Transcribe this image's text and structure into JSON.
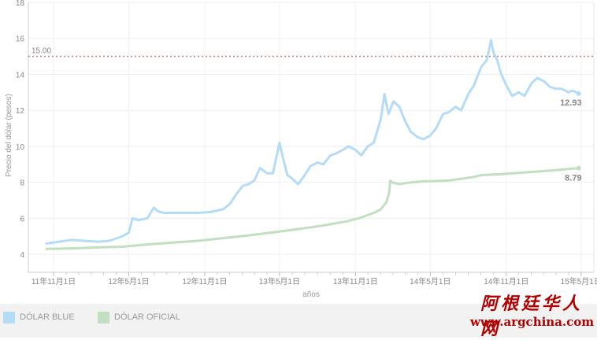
{
  "chart_data": {
    "type": "line",
    "ylabel": "Precio del dólar (pesos)",
    "xlabel": "años",
    "ylim": [
      3,
      18
    ],
    "yticks": [
      4,
      6,
      8,
      10,
      12,
      14,
      16,
      18
    ],
    "xlim": [
      "2011-09-01",
      "2015-06-01"
    ],
    "xticks": [
      {
        "date": "2011-11-01",
        "label": "11年11月1日"
      },
      {
        "date": "2012-05-01",
        "label": "12年5月1日"
      },
      {
        "date": "2012-11-01",
        "label": "12年11月1日"
      },
      {
        "date": "2013-05-01",
        "label": "13年5月1日"
      },
      {
        "date": "2013-11-01",
        "label": "13年11月1日"
      },
      {
        "date": "2014-05-01",
        "label": "14年5月1日"
      },
      {
        "date": "2014-11-01",
        "label": "14年11月1日"
      },
      {
        "date": "2015-05-01",
        "label": "15年5月1日"
      }
    ],
    "reference_line": {
      "value": 15.0,
      "label": "15.00",
      "color": "#cc7777"
    },
    "grid": true,
    "series": [
      {
        "name": "DÓLAR BLUE",
        "color": "#b5dcf7",
        "end_label": "12.93",
        "x": [
          "2011-10-15",
          "2011-11-15",
          "2011-12-15",
          "2012-01-15",
          "2012-02-15",
          "2012-03-15",
          "2012-04-15",
          "2012-05-01",
          "2012-05-10",
          "2012-05-25",
          "2012-06-15",
          "2012-07-01",
          "2012-07-10",
          "2012-07-25",
          "2012-08-15",
          "2012-09-15",
          "2012-10-15",
          "2012-11-15",
          "2012-12-15",
          "2013-01-01",
          "2013-01-15",
          "2013-02-01",
          "2013-02-15",
          "2013-03-01",
          "2013-03-15",
          "2013-04-01",
          "2013-04-15",
          "2013-05-01",
          "2013-05-10",
          "2013-05-20",
          "2013-06-01",
          "2013-06-15",
          "2013-07-01",
          "2013-07-15",
          "2013-08-01",
          "2013-08-15",
          "2013-09-01",
          "2013-09-15",
          "2013-10-01",
          "2013-10-15",
          "2013-11-01",
          "2013-11-15",
          "2013-12-01",
          "2013-12-15",
          "2014-01-01",
          "2014-01-10",
          "2014-01-20",
          "2014-02-01",
          "2014-02-15",
          "2014-03-01",
          "2014-03-15",
          "2014-04-01",
          "2014-04-15",
          "2014-05-01",
          "2014-05-15",
          "2014-06-01",
          "2014-06-15",
          "2014-07-01",
          "2014-07-15",
          "2014-08-01",
          "2014-08-15",
          "2014-09-01",
          "2014-09-15",
          "2014-09-25",
          "2014-10-01",
          "2014-10-10",
          "2014-10-20",
          "2014-11-01",
          "2014-11-15",
          "2014-12-01",
          "2014-12-15",
          "2015-01-01",
          "2015-01-15",
          "2015-02-01",
          "2015-02-15",
          "2015-03-01",
          "2015-03-15",
          "2015-04-01",
          "2015-04-10",
          "2015-04-25"
        ],
        "values": [
          4.6,
          4.7,
          4.8,
          4.75,
          4.7,
          4.75,
          5.0,
          5.2,
          6.0,
          5.9,
          6.0,
          6.6,
          6.4,
          6.3,
          6.3,
          6.3,
          6.3,
          6.35,
          6.5,
          6.8,
          7.3,
          7.8,
          7.9,
          8.1,
          8.8,
          8.5,
          8.5,
          10.2,
          9.3,
          8.4,
          8.2,
          7.9,
          8.4,
          8.9,
          9.1,
          9.0,
          9.5,
          9.6,
          9.8,
          10.0,
          9.8,
          9.5,
          10.0,
          10.2,
          11.5,
          12.9,
          11.8,
          12.5,
          12.2,
          11.4,
          10.8,
          10.5,
          10.4,
          10.6,
          11.0,
          11.8,
          11.9,
          12.2,
          12.0,
          12.9,
          13.4,
          14.4,
          14.8,
          15.9,
          15.2,
          14.8,
          14.0,
          13.4,
          12.8,
          13.0,
          12.8,
          13.5,
          13.8,
          13.6,
          13.3,
          13.2,
          13.2,
          13.0,
          13.1,
          12.93
        ]
      },
      {
        "name": "DÓLAR OFICIAL",
        "color": "#c2dfc2",
        "end_label": "8.79",
        "x": [
          "2011-10-15",
          "2011-12-15",
          "2012-02-15",
          "2012-04-15",
          "2012-06-15",
          "2012-08-15",
          "2012-10-15",
          "2012-12-15",
          "2013-02-15",
          "2013-04-15",
          "2013-06-15",
          "2013-08-15",
          "2013-10-15",
          "2013-11-15",
          "2013-12-15",
          "2014-01-01",
          "2014-01-15",
          "2014-01-22",
          "2014-01-24",
          "2014-01-28",
          "2014-02-15",
          "2014-03-15",
          "2014-04-15",
          "2014-06-15",
          "2014-08-15",
          "2014-09-01",
          "2014-10-15",
          "2014-12-15",
          "2015-02-15",
          "2015-04-25"
        ],
        "values": [
          4.3,
          4.33,
          4.38,
          4.42,
          4.55,
          4.65,
          4.75,
          4.9,
          5.05,
          5.22,
          5.4,
          5.6,
          5.85,
          6.05,
          6.3,
          6.5,
          6.9,
          7.5,
          8.1,
          8.0,
          7.9,
          8.0,
          8.05,
          8.1,
          8.3,
          8.4,
          8.45,
          8.55,
          8.65,
          8.79
        ]
      }
    ]
  },
  "legend": {
    "items": [
      {
        "label": "DÓLAR BLUE",
        "color": "#b5dcf7"
      },
      {
        "label": "DÓLAR OFICIAL",
        "color": "#c2dfc2"
      }
    ]
  },
  "watermark": {
    "chinese": "阿根廷华人网",
    "url": "www.argchina.com",
    "color": "#b20000"
  }
}
